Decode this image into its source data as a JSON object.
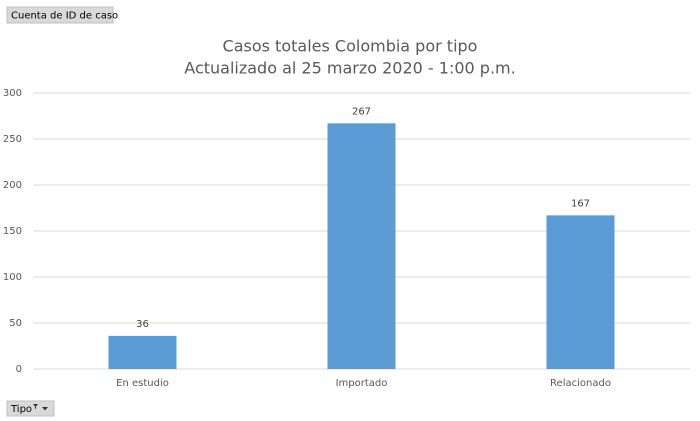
{
  "chart_data": {
    "type": "bar",
    "title": "Casos totales Colombia por tipo",
    "subtitle": "Actualizado al 25 marzo 2020 - 1:00 p.m.",
    "value_field_button": "Cuenta de ID de caso",
    "axis_field_button": "Tipo",
    "categories": [
      "En estudio",
      "Importado",
      "Relacionado"
    ],
    "values": [
      36,
      267,
      167
    ],
    "color": "#5b9bd5",
    "ylim": [
      0,
      300
    ],
    "yticks": [
      0,
      50,
      100,
      150,
      200,
      250,
      300
    ],
    "grid": true
  }
}
